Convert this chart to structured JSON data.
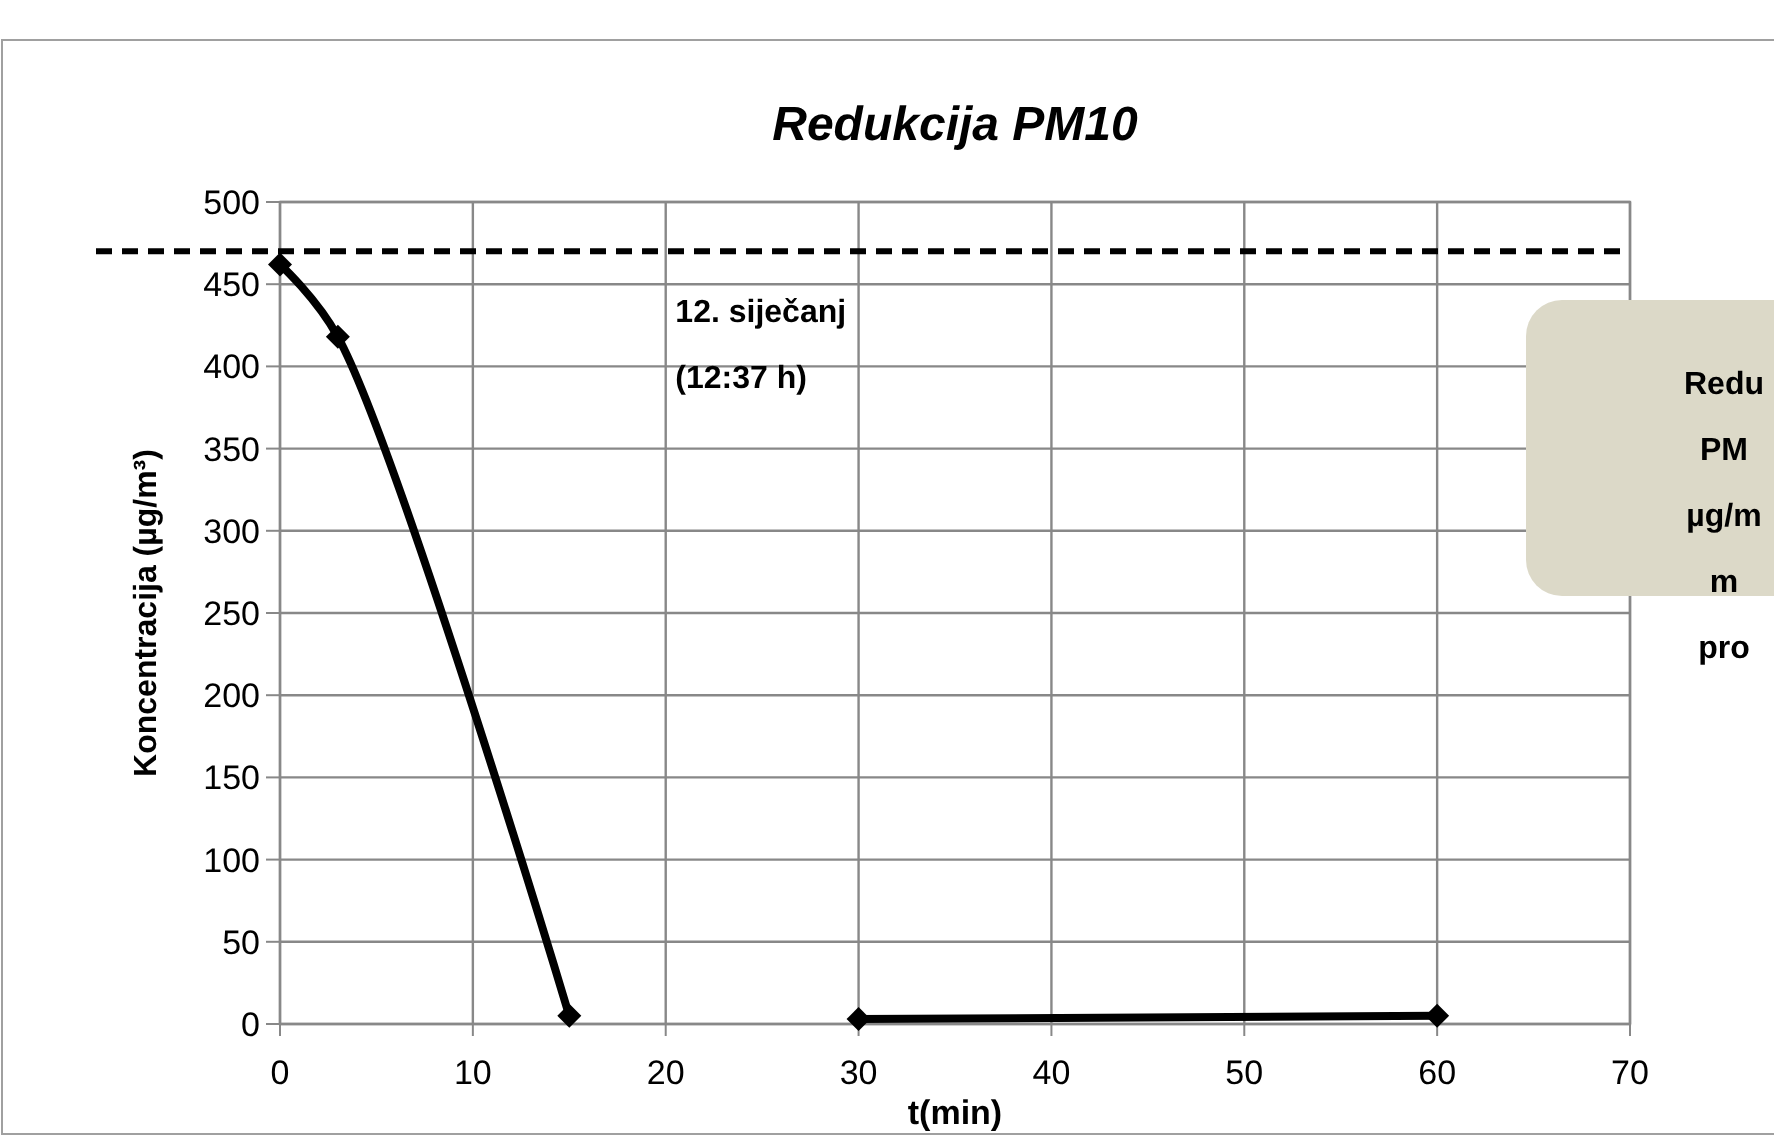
{
  "chart_data": {
    "type": "line",
    "title": "Redukcija PM10",
    "xlabel": "t(min)",
    "ylabel": "Koncentracija (µg/m³)",
    "series": [
      {
        "color": "#000000",
        "x": [
          0,
          3,
          15
        ],
        "values": [
          462,
          418,
          5
        ]
      },
      {
        "color": "#000000",
        "x": [
          30,
          60
        ],
        "values": [
          3,
          5
        ]
      }
    ],
    "xlim": [
      0,
      70
    ],
    "xticks": [
      0,
      10,
      20,
      30,
      40,
      50,
      60,
      70
    ],
    "ylim": [
      0,
      500
    ],
    "yticks": [
      0,
      50,
      100,
      150,
      200,
      250,
      300,
      350,
      400,
      450,
      500
    ],
    "grid": true,
    "marker": "diamond",
    "line_style": "solid",
    "ref_lines": [
      {
        "axis": "y",
        "value": 470,
        "color": "#000000",
        "line_style": "dashed"
      }
    ],
    "annotations": [
      "12. siječanj\n(12:37 h)",
      "Redu\nPM\nµg/m\nm\npro"
    ]
  }
}
